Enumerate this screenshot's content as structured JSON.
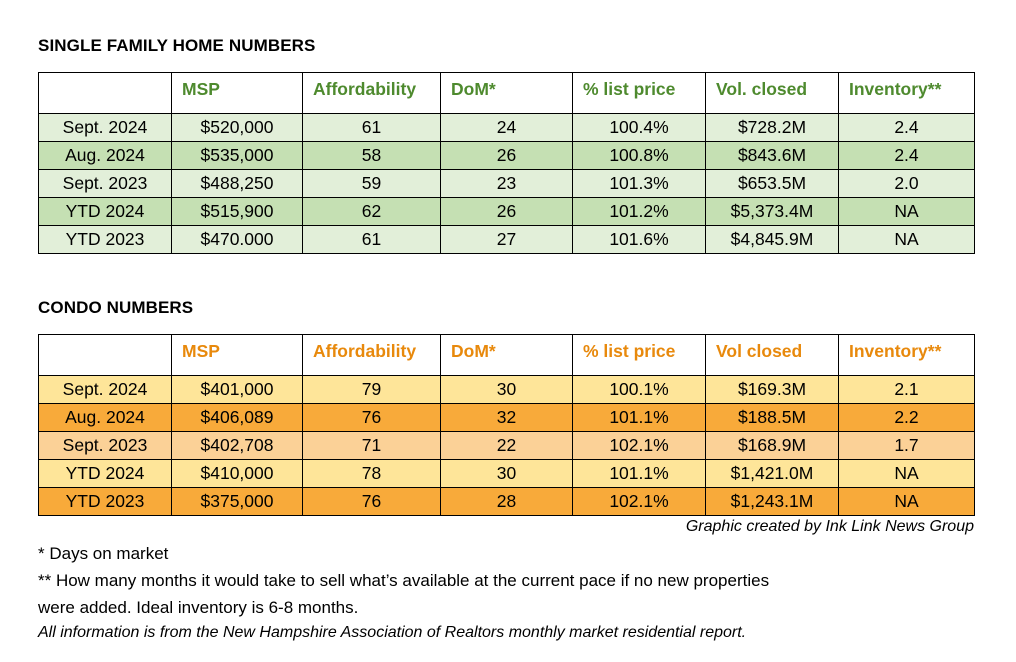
{
  "single_family": {
    "title": "SINGLE FAMILY HOME NUMBERS",
    "headers": [
      "",
      "MSP",
      "Affordability",
      "DoM*",
      "% list price",
      "Vol. closed",
      "Inventory**"
    ],
    "header_color": "#4e8a2e",
    "row_colors": [
      "#e2efd9",
      "#c5e0b3"
    ],
    "rows": [
      [
        "Sept. 2024",
        "$520,000",
        "61",
        "24",
        "100.4%",
        "$728.2M",
        "2.4"
      ],
      [
        "Aug. 2024",
        "$535,000",
        "58",
        "26",
        "100.8%",
        "$843.6M",
        "2.4"
      ],
      [
        "Sept. 2023",
        "$488,250",
        "59",
        "23",
        "101.3%",
        "$653.5M",
        "2.0"
      ],
      [
        "YTD 2024",
        "$515,900",
        "62",
        "26",
        "101.2%",
        "$5,373.4M",
        "NA"
      ],
      [
        "YTD 2023",
        "$470.000",
        "61",
        "27",
        "101.6%",
        "$4,845.9M",
        "NA"
      ]
    ]
  },
  "condo": {
    "title": "CONDO NUMBERS",
    "headers": [
      "",
      "MSP",
      "Affordability",
      "DoM*",
      "% list price",
      "Vol closed",
      "Inventory**"
    ],
    "header_color": "#e8890c",
    "row_colors": [
      "#fee599",
      "#f8aa3a",
      "#fbd197"
    ],
    "rows": [
      [
        "Sept. 2024",
        "$401,000",
        "79",
        "30",
        "100.1%",
        "$169.3M",
        "2.1"
      ],
      [
        "Aug. 2024",
        "$406,089",
        "76",
        "32",
        "101.1%",
        "$188.5M",
        "2.2"
      ],
      [
        "Sept. 2023",
        "$402,708",
        "71",
        "22",
        "102.1%",
        "$168.9M",
        "1.7"
      ],
      [
        "YTD 2024",
        "$410,000",
        "78",
        "30",
        "101.1%",
        "$1,421.0M",
        "NA"
      ],
      [
        "YTD 2023",
        "$375,000",
        "76",
        "28",
        "102.1%",
        "$1,243.1M",
        "NA"
      ]
    ]
  },
  "credit": "Graphic created by Ink Link News Group",
  "notes": {
    "dom": "* Days on market",
    "inventory_line1": "** How many months it would take to sell what’s available at the current pace if no new properties",
    "inventory_line2": "were added. Ideal inventory is 6-8 months.",
    "source": "All information is from the New Hampshire Association of Realtors monthly market residential report."
  }
}
